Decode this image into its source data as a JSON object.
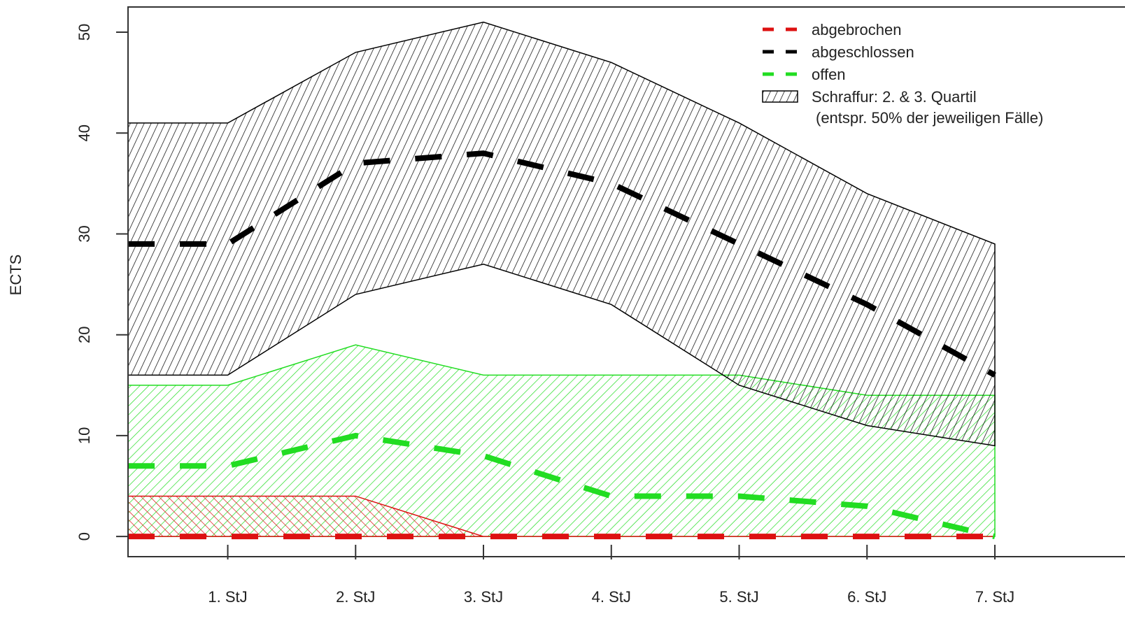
{
  "chart_data": {
    "type": "area",
    "title": "",
    "xlabel": "",
    "ylabel": "ECTS",
    "categories": [
      "1. StJ",
      "2.  StJ",
      "3. StJ",
      "4. StJ",
      "5. StJ",
      "6. StJ",
      "7. StJ"
    ],
    "x_positions": [
      1,
      2,
      3,
      4,
      5,
      6,
      7
    ],
    "xlim": [
      0.22,
      8.1
    ],
    "ylim": [
      -2,
      52.5
    ],
    "yticks": [
      0,
      10,
      20,
      30,
      40,
      50
    ],
    "grid": false,
    "legend_position": "top-right",
    "series": [
      {
        "name": "offen",
        "color": "#22dd22",
        "x": [
          0.22,
          1,
          2,
          3,
          4,
          5,
          6,
          7
        ],
        "median": [
          7,
          7,
          10,
          8,
          4,
          4,
          3,
          0
        ],
        "q1": [
          0,
          0,
          0,
          0,
          0,
          0,
          0,
          0
        ],
        "q3": [
          15,
          15,
          19,
          16,
          16,
          16,
          14,
          14
        ]
      },
      {
        "name": "abgebrochen",
        "color": "#dd1111",
        "x": [
          0.22,
          1,
          2,
          3,
          4,
          5,
          6,
          7
        ],
        "median": [
          0,
          0,
          0,
          0,
          0,
          0,
          0,
          0
        ],
        "q1": [
          0,
          0,
          0,
          0,
          0,
          0,
          0,
          0
        ],
        "q3": [
          4,
          4,
          4,
          0,
          0,
          0,
          0,
          0
        ]
      },
      {
        "name": "abgeschlossen",
        "color": "#000000",
        "x": [
          0.22,
          1,
          2,
          3,
          4,
          5,
          6,
          7
        ],
        "median": [
          29,
          29,
          37,
          38,
          35,
          29,
          23,
          16
        ],
        "q1": [
          16,
          16,
          24,
          27,
          23,
          15,
          11,
          9
        ],
        "q3": [
          41,
          41,
          48,
          51,
          47,
          41,
          34,
          29
        ]
      }
    ],
    "legend": [
      {
        "label": "abgebrochen",
        "color": "#dd1111",
        "kind": "dashed-line"
      },
      {
        "label": "abgeschlossen",
        "color": "#000000",
        "kind": "dashed-line"
      },
      {
        "label": "offen",
        "color": "#22dd22",
        "kind": "dashed-line"
      },
      {
        "label": "Schraffur: 2. & 3. Quartil",
        "color": "#000000",
        "kind": "hatch"
      }
    ],
    "legend_note": "(entspr. 50% der jeweiligen Fälle)"
  }
}
